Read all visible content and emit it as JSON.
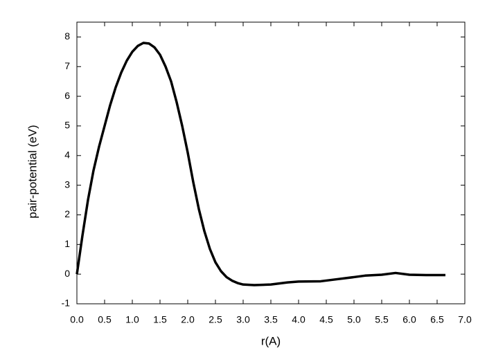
{
  "chart_data": {
    "type": "line",
    "xlabel": "r(A)",
    "ylabel": "pair-potential (eV)",
    "x": [
      0,
      0.1,
      0.2,
      0.3,
      0.4,
      0.5,
      0.6,
      0.7,
      0.8,
      0.9,
      1.0,
      1.1,
      1.2,
      1.3,
      1.4,
      1.5,
      1.6,
      1.7,
      1.8,
      1.9,
      2.0,
      2.1,
      2.2,
      2.3,
      2.4,
      2.5,
      2.6,
      2.7,
      2.8,
      2.9,
      3.0,
      3.2,
      3.5,
      3.8,
      4.0,
      4.4,
      4.7,
      5.0,
      5.2,
      5.5,
      5.75,
      6.0,
      6.3,
      6.65
    ],
    "series": [
      {
        "color": "#000000",
        "values": [
          0,
          1.3,
          2.5,
          3.5,
          4.3,
          5.0,
          5.7,
          6.3,
          6.8,
          7.2,
          7.5,
          7.7,
          7.8,
          7.78,
          7.65,
          7.4,
          7.0,
          6.5,
          5.8,
          5.0,
          4.1,
          3.1,
          2.2,
          1.45,
          0.85,
          0.4,
          0.1,
          -0.1,
          -0.22,
          -0.3,
          -0.35,
          -0.37,
          -0.35,
          -0.28,
          -0.25,
          -0.24,
          -0.17,
          -0.1,
          -0.05,
          -0.02,
          0.04,
          -0.02,
          -0.03,
          -0.03
        ]
      }
    ],
    "xlim": [
      0,
      7
    ],
    "ylim": [
      -1,
      8.5
    ],
    "xticks": [
      {
        "value": 0,
        "label": "0.0"
      },
      {
        "value": 0.5,
        "label": "0.5"
      },
      {
        "value": 1,
        "label": "1.0"
      },
      {
        "value": 1.5,
        "label": "1.5"
      },
      {
        "value": 2,
        "label": "2.0"
      },
      {
        "value": 2.5,
        "label": "2.5"
      },
      {
        "value": 3,
        "label": "3.0"
      },
      {
        "value": 3.5,
        "label": "3.5"
      },
      {
        "value": 4,
        "label": "4.0"
      },
      {
        "value": 4.5,
        "label": "4.5"
      },
      {
        "value": 5,
        "label": "5.0"
      },
      {
        "value": 5.5,
        "label": "5.5"
      },
      {
        "value": 6,
        "label": "6.0"
      },
      {
        "value": 6.5,
        "label": "6.5"
      },
      {
        "value": 7,
        "label": "7.0"
      }
    ],
    "yticks": [
      -1,
      0,
      1,
      2,
      3,
      4,
      5,
      6,
      7,
      8
    ],
    "grid": false
  }
}
